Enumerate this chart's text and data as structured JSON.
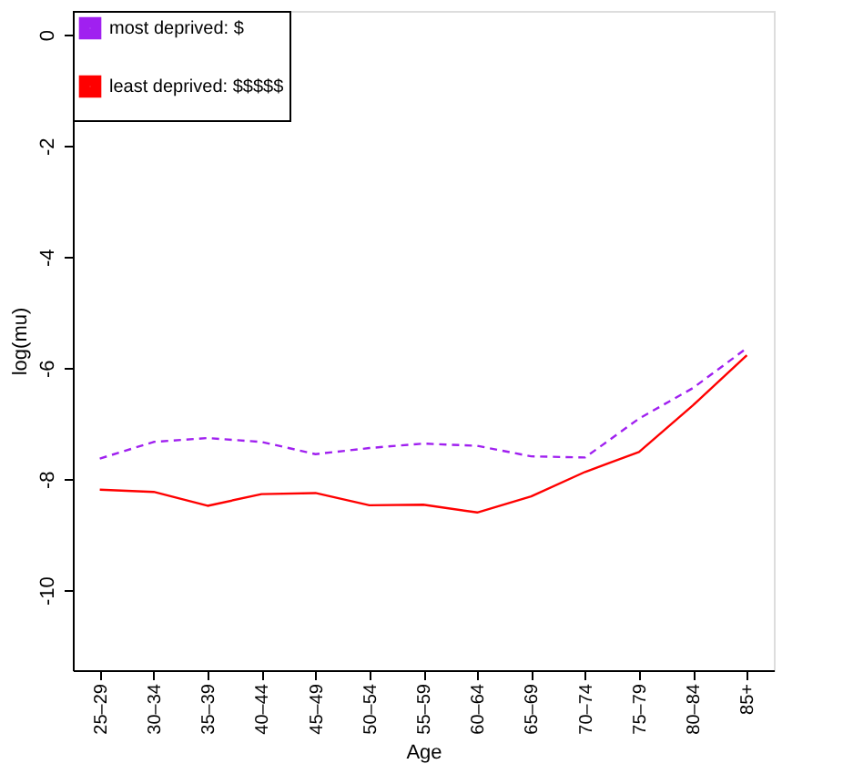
{
  "chart_data": {
    "type": "line",
    "xlabel": "Age",
    "ylabel": "log(mu)",
    "categories": [
      "25–29",
      "30–34",
      "35–39",
      "40–44",
      "45–49",
      "50–54",
      "55–59",
      "60–64",
      "65–69",
      "70–74",
      "75–79",
      "80–84",
      "85+"
    ],
    "series": [
      {
        "name": "most deprived: $",
        "color": "#a020f0",
        "line_style": "dashed",
        "values": [
          -7.63,
          -7.33,
          -7.26,
          -7.33,
          -7.55,
          -7.44,
          -7.36,
          -7.4,
          -7.59,
          -7.61,
          -6.91,
          -6.36,
          -5.64
        ]
      },
      {
        "name": "least deprived: $$$$$",
        "color": "#ff0000",
        "line_style": "solid",
        "values": [
          -8.19,
          -8.23,
          -8.48,
          -8.27,
          -8.25,
          -8.47,
          -8.46,
          -8.6,
          -8.31,
          -7.87,
          -7.51,
          -6.67,
          -5.77
        ]
      }
    ],
    "ylim": [
      -11.44,
      0.43
    ],
    "yticks": [
      -10,
      -8,
      -6,
      -4,
      -2,
      0
    ],
    "grid": false,
    "legend": "top left",
    "marker": "none"
  }
}
